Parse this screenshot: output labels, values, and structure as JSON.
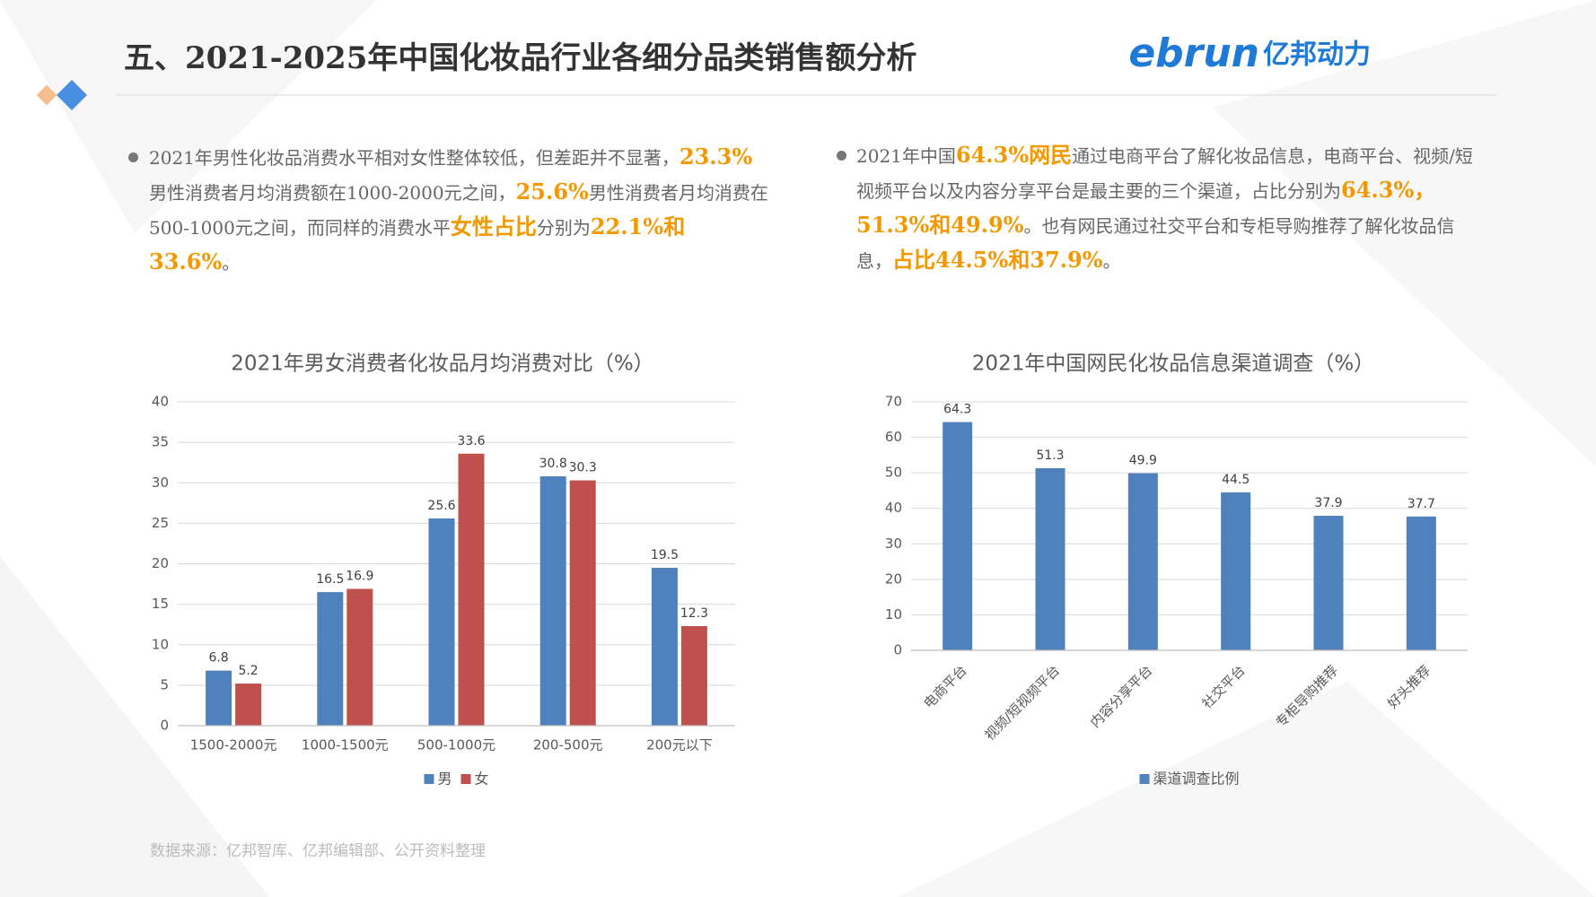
{
  "title": "五、2021-2025年中国化妆品行业各细分品类销售额分析",
  "logo": {
    "latin": "ebrun",
    "cjk": "亿邦动力"
  },
  "paragraphs": [
    {
      "segments": [
        {
          "text": "2021年男性化妆品消费水平相对女性整体较低，但差距并不显著，",
          "highlight": false
        },
        {
          "text": "23.3%",
          "highlight": true
        },
        {
          "text": "男性消费者月均消费额在1000-2000元之间，",
          "highlight": false
        },
        {
          "text": "25.6%",
          "highlight": true
        },
        {
          "text": "男性消费者月均消费在500-1000元之间，而同样的消费水平",
          "highlight": false
        },
        {
          "text": "女性占比",
          "highlight": true
        },
        {
          "text": "分别为",
          "highlight": false
        },
        {
          "text": "22.1%和33.6%",
          "highlight": true
        },
        {
          "text": "。",
          "highlight": false
        }
      ]
    },
    {
      "segments": [
        {
          "text": "2021年中国",
          "highlight": false
        },
        {
          "text": "64.3%网民",
          "highlight": true
        },
        {
          "text": "通过电商平台了解化妆品信息，电商平台、视频/短视频平台以及内容分享平台是最主要的三个渠道，占比分别为",
          "highlight": false
        },
        {
          "text": "64.3%，51.3%和49.9%",
          "highlight": true
        },
        {
          "text": "。也有网民通过社交平台和专柜导购推荐了解化妆品信息，",
          "highlight": false
        },
        {
          "text": "占比44.5%和37.9%",
          "highlight": true
        },
        {
          "text": "。",
          "highlight": false
        }
      ]
    }
  ],
  "chart_data": [
    {
      "type": "bar",
      "title": "2021年男女消费者化妆品月均消费对比（%）",
      "categories": [
        "1500-2000元",
        "1000-1500元",
        "500-1000元",
        "200-500元",
        "200元以下"
      ],
      "series": [
        {
          "name": "男",
          "color": "#4f81bd",
          "values": [
            6.8,
            16.5,
            25.6,
            30.8,
            19.5
          ]
        },
        {
          "name": "女",
          "color": "#c0504d",
          "values": [
            5.2,
            16.9,
            33.6,
            30.3,
            12.3
          ]
        }
      ],
      "ylim": [
        0,
        40
      ],
      "yticks": [
        0,
        5,
        10,
        15,
        20,
        25,
        30,
        35,
        40
      ],
      "grid": true,
      "rotate_labels": false,
      "legend": "bottom"
    },
    {
      "type": "bar",
      "title": "2021年中国网民化妆品信息渠道调查（%）",
      "categories": [
        "电商平台",
        "视频/短视频平台",
        "内容分享平台",
        "社交平台",
        "专柜导购推荐",
        "好头推荐"
      ],
      "series": [
        {
          "name": "渠道调查比例",
          "color": "#4f81bd",
          "values": [
            64.3,
            51.3,
            49.9,
            44.5,
            37.9,
            37.7
          ]
        }
      ],
      "ylim": [
        0,
        70
      ],
      "yticks": [
        0,
        10,
        20,
        30,
        40,
        50,
        60,
        70
      ],
      "grid": true,
      "rotate_labels": true,
      "legend": "bottom"
    }
  ],
  "source": "数据来源：亿邦智库、亿邦编辑部、公开资料整理"
}
